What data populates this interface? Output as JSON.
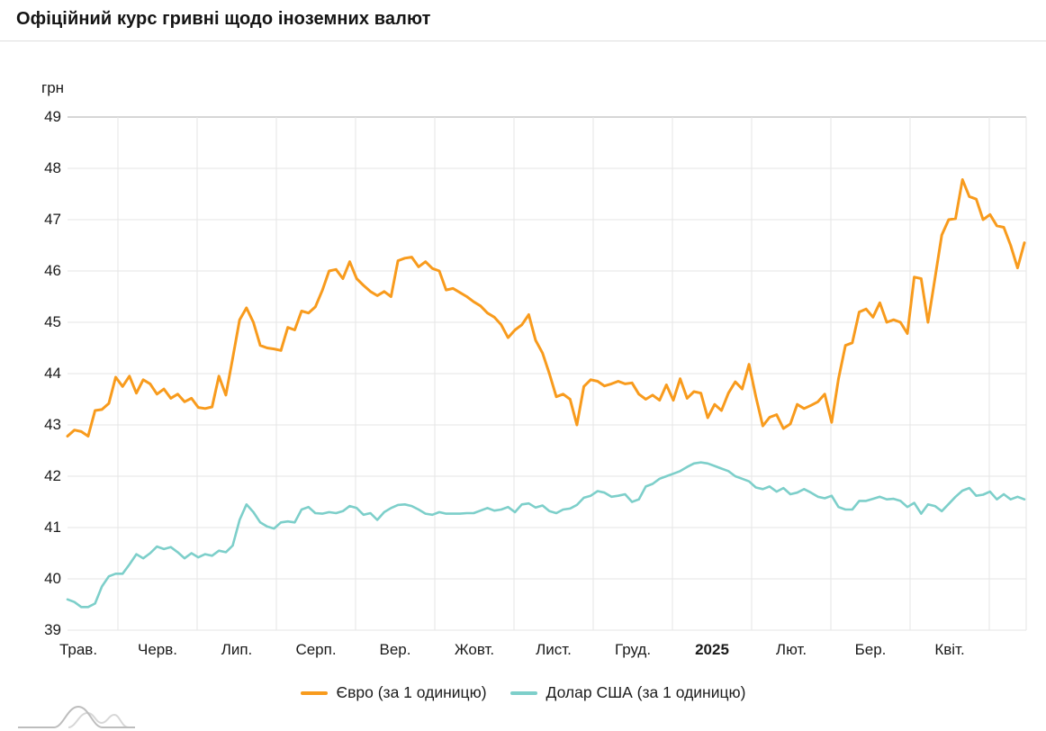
{
  "title": "Офіційний курс гривні щодо іноземних валют",
  "chart_data": {
    "type": "line",
    "title": "Офіційний курс гривні щодо іноземних валют",
    "y_axis_label": "грн",
    "ylim": [
      39,
      49
    ],
    "y_ticks": [
      49,
      48,
      47,
      46,
      45,
      44,
      43,
      42,
      41,
      40,
      39
    ],
    "x_labels": [
      "Трав.",
      "Черв.",
      "Лип.",
      "Серп.",
      "Вер.",
      "Жовт.",
      "Лист.",
      "Груд.",
      "2025",
      "Лют.",
      "Бер.",
      "Квіт."
    ],
    "bold_x_label": "2025",
    "grid": true,
    "legend_position": "bottom",
    "colors": {
      "euro": "#F89B1D",
      "usd": "#7DCFCA",
      "grid": "#e5e5e5",
      "grid_top": "#c9c9c9"
    },
    "series": [
      {
        "name": "Євро (за 1 одиницю)",
        "color": "#F89B1D",
        "values": [
          42.78,
          42.9,
          42.87,
          42.78,
          43.28,
          43.3,
          43.42,
          43.93,
          43.75,
          43.95,
          43.62,
          43.88,
          43.8,
          43.6,
          43.7,
          43.52,
          43.6,
          43.45,
          43.52,
          43.34,
          43.32,
          43.35,
          43.95,
          43.58,
          44.3,
          45.05,
          45.28,
          45.0,
          44.55,
          44.5,
          44.48,
          44.45,
          44.9,
          44.85,
          45.22,
          45.18,
          45.3,
          45.62,
          46.0,
          46.03,
          45.85,
          46.18,
          45.85,
          45.72,
          45.6,
          45.52,
          45.6,
          45.5,
          46.2,
          46.25,
          46.27,
          46.08,
          46.18,
          46.05,
          46.0,
          45.63,
          45.66,
          45.58,
          45.5,
          45.4,
          45.32,
          45.18,
          45.1,
          44.95,
          44.7,
          44.85,
          44.95,
          45.15,
          44.65,
          44.4,
          44.0,
          43.55,
          43.6,
          43.5,
          43.0,
          43.75,
          43.88,
          43.85,
          43.76,
          43.8,
          43.85,
          43.8,
          43.82,
          43.6,
          43.5,
          43.58,
          43.48,
          43.78,
          43.48,
          43.9,
          43.52,
          43.65,
          43.62,
          43.14,
          43.4,
          43.28,
          43.62,
          43.84,
          43.7,
          44.18,
          43.55,
          42.98,
          43.15,
          43.2,
          42.93,
          43.02,
          43.4,
          43.32,
          43.38,
          43.45,
          43.6,
          43.05,
          43.9,
          44.55,
          44.6,
          45.2,
          45.26,
          45.1,
          45.38,
          45.0,
          45.05,
          45.0,
          44.78,
          45.88,
          45.85,
          45.0,
          45.85,
          46.7,
          47.0,
          47.02,
          47.78,
          47.45,
          47.4,
          47.0,
          47.1,
          46.88,
          46.85,
          46.5,
          46.06,
          46.55
        ]
      },
      {
        "name": "Долар США (за 1 одиницю)",
        "color": "#7DCFCA",
        "values": [
          39.6,
          39.55,
          39.45,
          39.45,
          39.52,
          39.85,
          40.05,
          40.1,
          40.1,
          40.28,
          40.48,
          40.4,
          40.5,
          40.63,
          40.58,
          40.62,
          40.52,
          40.4,
          40.5,
          40.42,
          40.48,
          40.45,
          40.55,
          40.52,
          40.65,
          41.15,
          41.45,
          41.3,
          41.1,
          41.02,
          40.98,
          41.1,
          41.12,
          41.1,
          41.35,
          41.4,
          41.28,
          41.27,
          41.3,
          41.28,
          41.32,
          41.42,
          41.38,
          41.25,
          41.28,
          41.15,
          41.3,
          41.38,
          41.44,
          41.45,
          41.42,
          41.35,
          41.27,
          41.25,
          41.3,
          41.27,
          41.27,
          41.27,
          41.28,
          41.28,
          41.33,
          41.38,
          41.33,
          41.35,
          41.4,
          41.3,
          41.45,
          41.47,
          41.39,
          41.43,
          41.32,
          41.28,
          41.35,
          41.37,
          41.44,
          41.58,
          41.62,
          41.71,
          41.68,
          41.6,
          41.62,
          41.65,
          41.5,
          41.55,
          41.8,
          41.85,
          41.95,
          42.0,
          42.05,
          42.1,
          42.18,
          42.25,
          42.27,
          42.25,
          42.2,
          42.15,
          42.1,
          42.0,
          41.95,
          41.9,
          41.78,
          41.75,
          41.8,
          41.7,
          41.77,
          41.65,
          41.68,
          41.75,
          41.68,
          41.6,
          41.57,
          41.62,
          41.4,
          41.35,
          41.35,
          41.52,
          41.52,
          41.56,
          41.6,
          41.55,
          41.56,
          41.52,
          41.4,
          41.48,
          41.27,
          41.45,
          41.42,
          41.32,
          41.46,
          41.6,
          41.72,
          41.77,
          41.62,
          41.64,
          41.7,
          41.55,
          41.65,
          41.55,
          41.6,
          41.55
        ]
      }
    ]
  }
}
